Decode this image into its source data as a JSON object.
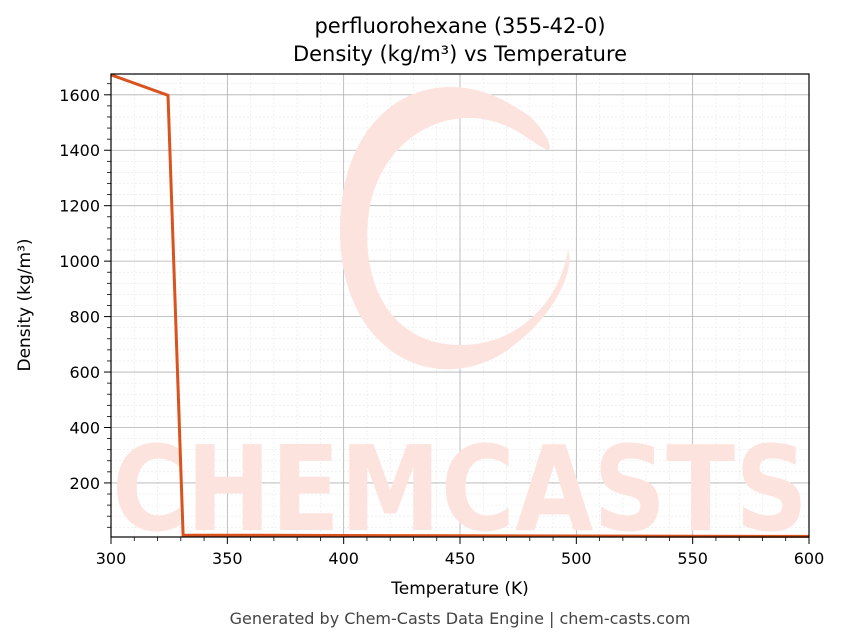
{
  "chart_data": {
    "type": "line",
    "title": "perfluorohexane (355-42-0)",
    "subtitle": "Density (kg/m³) vs Temperature",
    "xlabel": "Temperature (K)",
    "ylabel": "Density (kg/m³)",
    "xlim": [
      300,
      600
    ],
    "ylim": [
      5,
      1675
    ],
    "x_ticks": [
      300,
      350,
      400,
      450,
      500,
      550,
      600
    ],
    "y_ticks": [
      200,
      400,
      600,
      800,
      1000,
      1200,
      1400,
      1600
    ],
    "grid": true,
    "series": [
      {
        "color": "#d9531e",
        "x": [
          300,
          324.5,
          331,
          350,
          400,
          450,
          500,
          550,
          600
        ],
        "y": [
          1672,
          1598,
          12,
          11.5,
          10.5,
          9.5,
          8.5,
          7.8,
          7
        ]
      }
    ]
  },
  "watermark": {
    "text": "CHEMCASTS",
    "color": "#fde3de"
  },
  "footer": "Generated by Chem-Casts Data Engine | chem-casts.com"
}
